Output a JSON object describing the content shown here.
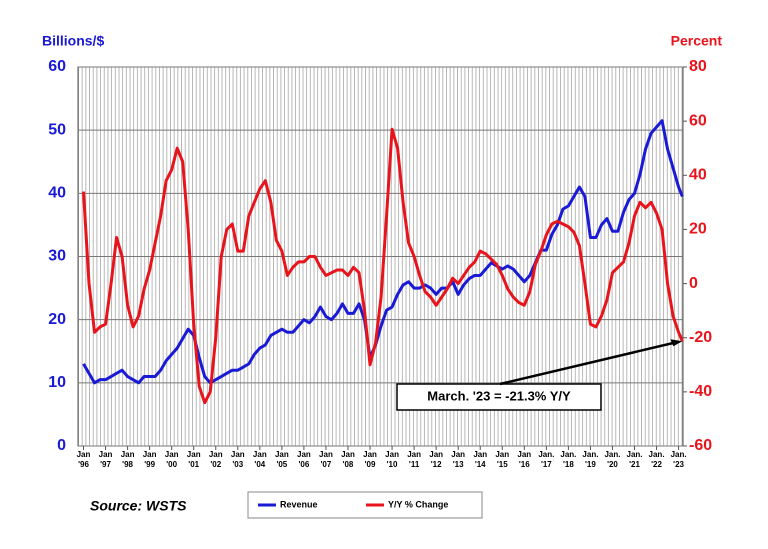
{
  "chart_data": {
    "type": "line",
    "y_label": "Billions/$",
    "y2_label": "Percent",
    "source": "Source: WSTS",
    "annotation": {
      "text": "March. '23 = -21.3% Y/Y"
    },
    "x": [
      1996,
      1996.25,
      1996.5,
      1996.75,
      1997,
      1997.25,
      1997.5,
      1997.75,
      1998,
      1998.25,
      1998.5,
      1998.75,
      1999,
      1999.25,
      1999.5,
      1999.75,
      2000,
      2000.25,
      2000.5,
      2000.75,
      2001,
      2001.25,
      2001.5,
      2001.75,
      2002,
      2002.25,
      2002.5,
      2002.75,
      2003,
      2003.25,
      2003.5,
      2003.75,
      2004,
      2004.25,
      2004.5,
      2004.75,
      2005,
      2005.25,
      2005.5,
      2005.75,
      2006,
      2006.25,
      2006.5,
      2006.75,
      2007,
      2007.25,
      2007.5,
      2007.75,
      2008,
      2008.25,
      2008.5,
      2008.75,
      2009,
      2009.25,
      2009.5,
      2009.75,
      2010,
      2010.25,
      2010.5,
      2010.75,
      2011,
      2011.25,
      2011.5,
      2011.75,
      2012,
      2012.25,
      2012.5,
      2012.75,
      2013,
      2013.25,
      2013.5,
      2013.75,
      2014,
      2014.25,
      2014.5,
      2014.75,
      2015,
      2015.25,
      2015.5,
      2015.75,
      2016,
      2016.25,
      2016.5,
      2016.75,
      2017,
      2017.25,
      2017.5,
      2017.75,
      2018,
      2018.25,
      2018.5,
      2018.75,
      2019,
      2019.25,
      2019.5,
      2019.75,
      2020,
      2020.25,
      2020.5,
      2020.75,
      2021,
      2021.25,
      2021.5,
      2021.75,
      2022,
      2022.25,
      2022.5,
      2022.75,
      2023,
      2023.17
    ],
    "series": [
      {
        "name": "Revenue",
        "color": "#1a1ad6",
        "values": [
          13,
          11.5,
          10,
          10.5,
          10.5,
          11,
          11.5,
          12,
          11,
          10.5,
          10,
          11,
          11,
          11,
          12,
          13.5,
          14.5,
          15.5,
          17,
          18.5,
          17.5,
          14,
          11,
          10,
          10.5,
          11,
          11.5,
          12,
          12,
          12.5,
          13,
          14.5,
          15.5,
          16,
          17.5,
          18,
          18.5,
          18,
          18,
          19,
          20,
          19.5,
          20.5,
          22,
          20.5,
          20,
          21,
          22.5,
          21,
          21,
          22.5,
          20,
          14,
          16,
          19,
          21.5,
          22,
          24,
          25.5,
          26,
          25,
          25,
          25.5,
          25,
          24,
          25,
          25,
          26,
          24,
          25.5,
          26.5,
          27,
          27,
          28,
          29,
          28.5,
          28,
          28.5,
          28,
          27,
          26,
          27,
          29,
          31,
          31,
          33.5,
          35,
          37.5,
          38,
          39.5,
          41,
          39.5,
          33,
          33,
          35,
          36,
          34,
          34,
          37,
          39,
          40,
          43,
          47,
          49.5,
          50.5,
          51.5,
          47,
          44,
          41,
          39.5
        ]
      },
      {
        "name": "Y/Y % Change",
        "color": "#e8141c",
        "axis": "y2",
        "values": [
          34,
          0,
          -18,
          -16,
          -15,
          0,
          17,
          10,
          -8,
          -16,
          -12,
          -2,
          5,
          15,
          25,
          38,
          42,
          50,
          45,
          20,
          -15,
          -38,
          -44,
          -40,
          -20,
          10,
          20,
          22,
          12,
          12,
          25,
          30,
          35,
          38,
          30,
          16,
          12,
          3,
          6,
          8,
          8,
          10,
          10,
          6,
          3,
          4,
          5,
          5,
          3,
          6,
          4,
          -10,
          -30,
          -22,
          -5,
          25,
          57,
          50,
          30,
          15,
          10,
          3,
          -3,
          -5,
          -8,
          -5,
          -2,
          2,
          0,
          3,
          6,
          8,
          12,
          11,
          9,
          7,
          3,
          -2,
          -5,
          -7,
          -8,
          -3,
          7,
          12,
          18,
          22,
          23,
          22,
          21,
          19,
          14,
          0,
          -15,
          -16,
          -12,
          -6,
          4,
          6,
          8,
          15,
          25,
          30,
          28,
          30,
          26,
          20,
          0,
          -12,
          -18,
          -21.3
        ]
      }
    ],
    "xlim": [
      1995.75,
      2023.2
    ],
    "xticks": [
      {
        "value": 1996,
        "label": "Jan '96"
      },
      {
        "value": 1997,
        "label": "Jan '97"
      },
      {
        "value": 1998,
        "label": "Jan '98"
      },
      {
        "value": 1999,
        "label": "Jan '99"
      },
      {
        "value": 2000,
        "label": "Jan '00"
      },
      {
        "value": 2001,
        "label": "Jan '01"
      },
      {
        "value": 2002,
        "label": "Jan '02"
      },
      {
        "value": 2003,
        "label": "Jan '03"
      },
      {
        "value": 2004,
        "label": "Jan '04"
      },
      {
        "value": 2005,
        "label": "Jan '05"
      },
      {
        "value": 2006,
        "label": "Jan '06"
      },
      {
        "value": 2007,
        "label": "Jan '07"
      },
      {
        "value": 2008,
        "label": "Jan '08"
      },
      {
        "value": 2009,
        "label": "Jan '09"
      },
      {
        "value": 2010,
        "label": "Jan '10"
      },
      {
        "value": 2011,
        "label": "Jan '11"
      },
      {
        "value": 2012,
        "label": "Jan '12"
      },
      {
        "value": 2013,
        "label": "Jan '13"
      },
      {
        "value": 2014,
        "label": "Jan '14"
      },
      {
        "value": 2015,
        "label": "Jan '15"
      },
      {
        "value": 2016,
        "label": "Jan '16"
      },
      {
        "value": 2017,
        "label": "Jan. '17"
      },
      {
        "value": 2018,
        "label": "Jan. '18"
      },
      {
        "value": 2019,
        "label": "Jan. '19"
      },
      {
        "value": 2020,
        "label": "Jan. '20"
      },
      {
        "value": 2021,
        "label": "Jan. '21"
      },
      {
        "value": 2022,
        "label": "Jan. '22"
      },
      {
        "value": 2023,
        "label": "Jan. '23"
      }
    ],
    "ylim": [
      0,
      60
    ],
    "yticks": [
      0,
      10,
      20,
      30,
      40,
      50,
      60
    ],
    "y2lim": [
      -60,
      80
    ],
    "y2ticks": [
      -60,
      -40,
      -20,
      0,
      20,
      40,
      60,
      80
    ],
    "grid": true
  }
}
